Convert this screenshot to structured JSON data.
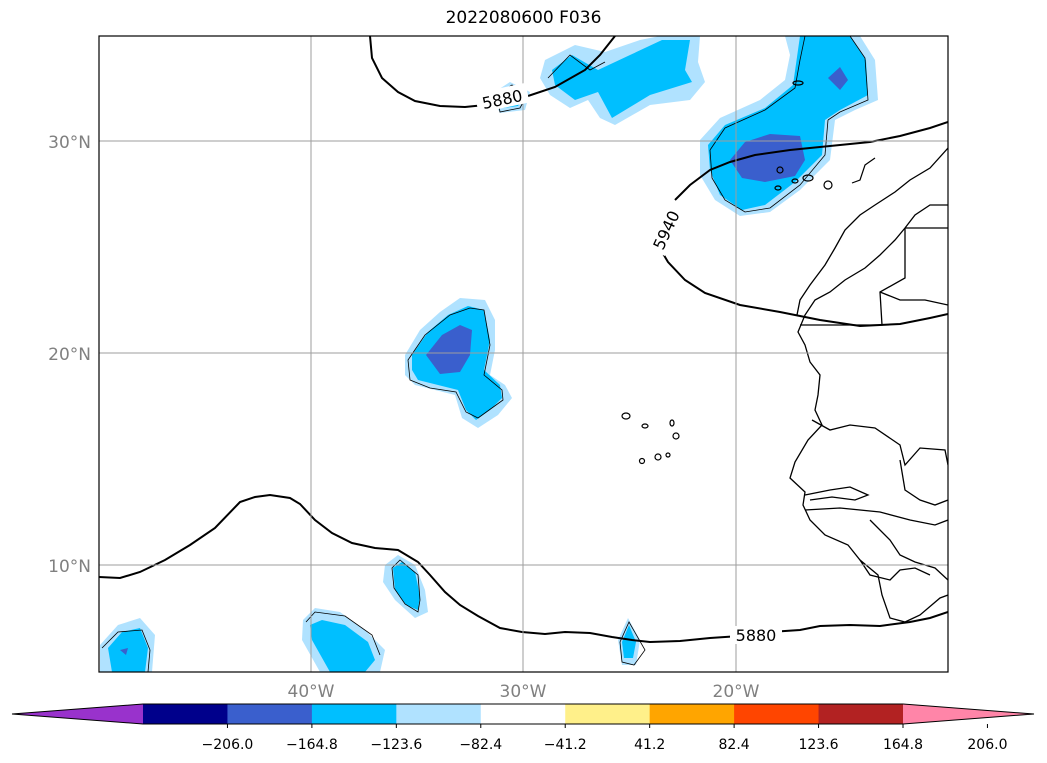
{
  "title": "2022080600 F036",
  "map": {
    "lat_labels": [
      "30°N",
      "20°N",
      "10°N"
    ],
    "lon_labels": [
      "40°W",
      "30°W",
      "20°W"
    ],
    "contour_labels": [
      "5880",
      "5940",
      "5880"
    ],
    "line_color": "#000000",
    "grid_color": "#9e9e9e"
  },
  "colorbar": {
    "tick_labels": [
      "−206.0",
      "−164.8",
      "−123.6",
      "−82.4",
      "−41.2",
      "41.2",
      "82.4",
      "123.6",
      "164.8",
      "206.0"
    ],
    "colors": [
      "#9932cc",
      "#00008b",
      "#3a5fcd",
      "#00bfff",
      "#b0e2ff",
      "#ffffff",
      "#fff08a",
      "#ffa500",
      "#ff4500",
      "#b22222",
      "#ff85a8"
    ]
  }
}
